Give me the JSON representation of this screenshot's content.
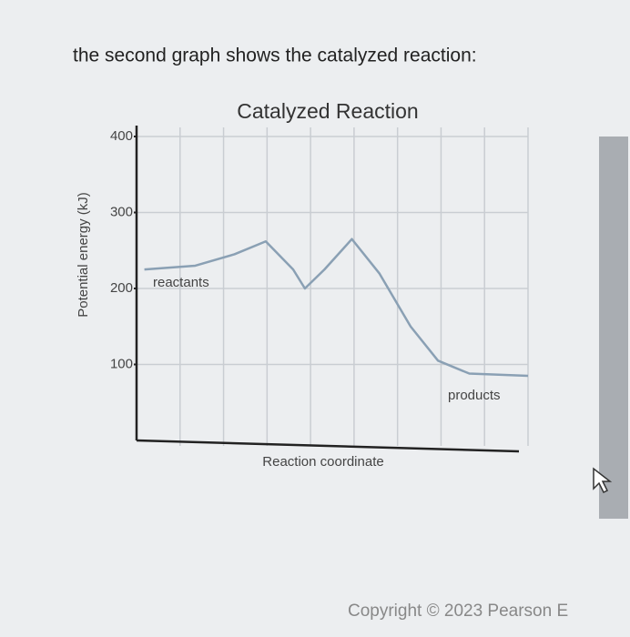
{
  "intro": "the second graph shows the catalyzed reaction:",
  "copyright": "Copyright © 2023 Pearson E",
  "chart_data": {
    "type": "line",
    "title": "Catalyzed Reaction",
    "y_label": "Potential energy (kJ)",
    "x_label": "Reaction coordinate",
    "annotations": [
      "reactants",
      "products"
    ],
    "x": [
      0.2,
      1.5,
      2.5,
      3.3,
      4.0,
      4.3,
      4.8,
      5.5,
      6.2,
      7.0,
      7.7,
      8.5,
      10
    ],
    "series": [
      {
        "color": "#8aa0b4",
        "values": [
          225,
          230,
          245,
          262,
          225,
          200,
          225,
          265,
          220,
          150,
          105,
          88,
          85
        ]
      }
    ],
    "xlim": [
      0,
      10
    ],
    "ylim": [
      0,
      400
    ],
    "yticks": [
      100,
      200,
      300,
      400
    ],
    "grid": true
  }
}
